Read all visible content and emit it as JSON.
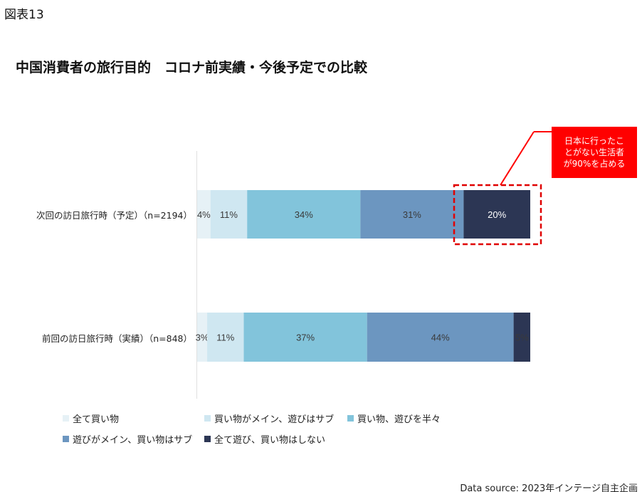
{
  "figure_label": "図表13",
  "chart_data": {
    "type": "bar",
    "orientation": "horizontal",
    "stacked": true,
    "title": "中国消費者の旅行目的　コロナ前実績・今後予定での比較",
    "categories": [
      "次回の訪日旅行時（予定）（n=2194）",
      "前回の訪日旅行時（実績）（n=848）"
    ],
    "unit": "%",
    "series": [
      {
        "name": "全て買い物",
        "color": "#e6f1f6",
        "values": [
          4,
          3
        ]
      },
      {
        "name": "買い物がメイン、遊びはサブ",
        "color": "#cfe7f1",
        "values": [
          11,
          11
        ]
      },
      {
        "name": "買い物、遊びを半々",
        "color": "#82c4db",
        "values": [
          34,
          37
        ]
      },
      {
        "name": "遊びがメイン、買い物はサブ",
        "color": "#6c96c0",
        "values": [
          31,
          44
        ]
      },
      {
        "name": "全て遊び、買い物はしない",
        "color": "#2c3654",
        "values": [
          20,
          5
        ]
      }
    ],
    "legend_position": "bottom",
    "annotation": {
      "text": [
        "日本に行ったこ",
        "とがない生活者",
        "が90%を占める"
      ],
      "color": "#ff0000"
    }
  },
  "source": "Data source: 2023年インテージ自主企画"
}
